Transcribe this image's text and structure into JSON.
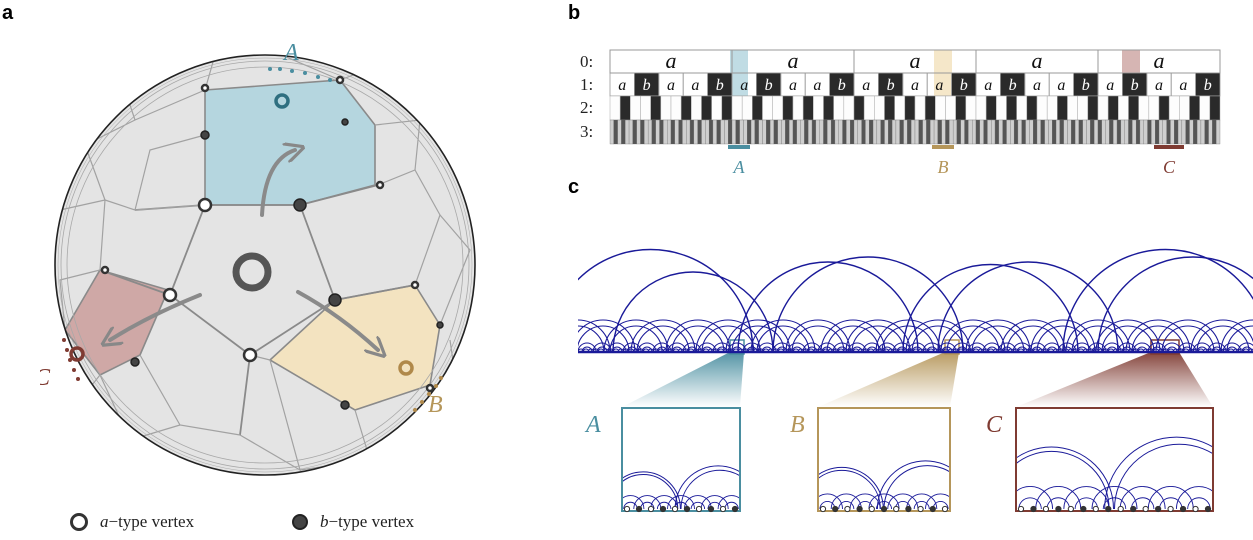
{
  "panels": {
    "a": "a",
    "b": "b",
    "c": "c"
  },
  "regions": [
    {
      "label": "A",
      "color": "#4a8ea0",
      "fill": "#b5d6df"
    },
    {
      "label": "B",
      "color": "#b5965a",
      "fill": "#f3e3c0"
    },
    {
      "label": "C",
      "color": "#7f3b32",
      "fill": "#cfa8a6"
    }
  ],
  "legend": {
    "a_letter": "a",
    "a_text": "−type vertex",
    "b_letter": "b",
    "b_text": "−type vertex"
  },
  "word_rows": {
    "labels": [
      "0:",
      "1:",
      "2:",
      "3:"
    ],
    "level0": [
      "a",
      "a",
      "a",
      "a",
      "a"
    ],
    "level1": [
      "a",
      "b",
      "a",
      "a",
      "b",
      "a",
      "b",
      "a",
      "a",
      "b",
      "a",
      "b",
      "a",
      "a",
      "b",
      "a",
      "b",
      "a",
      "a",
      "b",
      "a",
      "b",
      "a",
      "a",
      "b"
    ]
  },
  "colors": {
    "arc": "#1a1a99",
    "disk_fill": "#e4e4e4",
    "edge": "#8a8a8a"
  }
}
